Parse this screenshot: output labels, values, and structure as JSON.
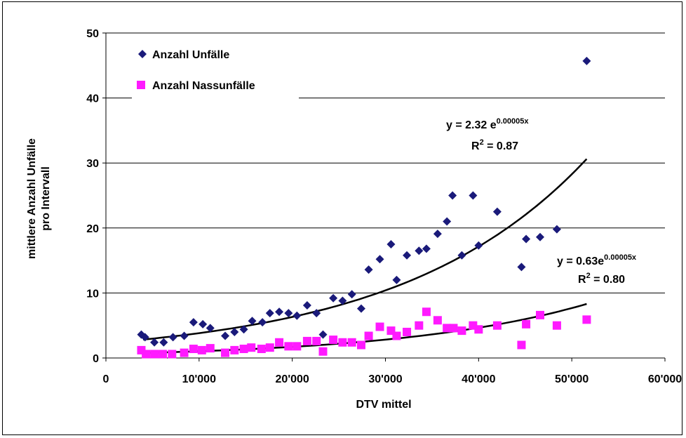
{
  "chart_data": {
    "type": "scatter",
    "title": "",
    "xlabel": "DTV mittel",
    "ylabel": "mittlere Anzahl Unfälle pro Intervall",
    "ylabel_lines": [
      "mittlere Anzahl Unfälle",
      "pro Intervall"
    ],
    "xlim": [
      0,
      60000
    ],
    "ylim": [
      0,
      50
    ],
    "x_ticks": [
      0,
      10000,
      20000,
      30000,
      40000,
      50000,
      60000
    ],
    "x_tick_labels": [
      "0",
      "10'000",
      "20'000",
      "30'000",
      "40'000",
      "50'000",
      "60'000"
    ],
    "y_ticks": [
      0,
      10,
      20,
      30,
      40,
      50
    ],
    "y_tick_labels": [
      "0",
      "10",
      "20",
      "30",
      "40",
      "50"
    ],
    "grid": "horizontal",
    "legend_position": "top-left",
    "series": [
      {
        "name": "Anzahl Unfälle",
        "marker": "diamond",
        "color": "#1a1a7a",
        "points": [
          [
            3800,
            3.6
          ],
          [
            4200,
            3.2
          ],
          [
            5200,
            2.4
          ],
          [
            6200,
            2.4
          ],
          [
            7200,
            3.2
          ],
          [
            8400,
            3.4
          ],
          [
            9400,
            5.5
          ],
          [
            10400,
            5.2
          ],
          [
            11200,
            4.6
          ],
          [
            12800,
            3.4
          ],
          [
            13800,
            4.0
          ],
          [
            14800,
            4.4
          ],
          [
            15700,
            5.7
          ],
          [
            16800,
            5.5
          ],
          [
            17600,
            6.9
          ],
          [
            18600,
            7.1
          ],
          [
            19600,
            6.9
          ],
          [
            20500,
            6.5
          ],
          [
            21600,
            8.1
          ],
          [
            22600,
            6.9
          ],
          [
            23300,
            3.6
          ],
          [
            24400,
            9.2
          ],
          [
            25400,
            8.8
          ],
          [
            26400,
            9.8
          ],
          [
            27400,
            7.6
          ],
          [
            28200,
            13.6
          ],
          [
            29400,
            15.2
          ],
          [
            30600,
            17.5
          ],
          [
            31200,
            12.0
          ],
          [
            32300,
            15.8
          ],
          [
            33600,
            16.5
          ],
          [
            34400,
            16.8
          ],
          [
            35600,
            19.1
          ],
          [
            36600,
            21.0
          ],
          [
            37200,
            25.0
          ],
          [
            38200,
            15.8
          ],
          [
            39400,
            25.0
          ],
          [
            40000,
            17.3
          ],
          [
            42000,
            22.5
          ],
          [
            44600,
            14.0
          ],
          [
            45100,
            18.3
          ],
          [
            46600,
            18.6
          ],
          [
            48400,
            19.8
          ],
          [
            51600,
            45.7
          ]
        ],
        "trendline": {
          "a": 2.32,
          "b": 5e-05,
          "x_range": [
            4000,
            51600
          ]
        }
      },
      {
        "name": "Anzahl Nassunfälle",
        "marker": "square",
        "color": "#ff1aff",
        "points": [
          [
            3800,
            1.2
          ],
          [
            4300,
            0.6
          ],
          [
            5200,
            0.6
          ],
          [
            6100,
            0.6
          ],
          [
            7100,
            0.6
          ],
          [
            8400,
            0.8
          ],
          [
            9400,
            1.4
          ],
          [
            10300,
            1.2
          ],
          [
            11200,
            1.5
          ],
          [
            12800,
            0.8
          ],
          [
            13800,
            1.2
          ],
          [
            14800,
            1.4
          ],
          [
            15600,
            1.6
          ],
          [
            16700,
            1.4
          ],
          [
            17600,
            1.6
          ],
          [
            18600,
            2.4
          ],
          [
            19600,
            1.8
          ],
          [
            20500,
            1.8
          ],
          [
            21600,
            2.6
          ],
          [
            22600,
            2.6
          ],
          [
            23300,
            1.0
          ],
          [
            24400,
            2.8
          ],
          [
            25400,
            2.4
          ],
          [
            26400,
            2.4
          ],
          [
            27400,
            2.0
          ],
          [
            28200,
            3.4
          ],
          [
            29400,
            4.8
          ],
          [
            30600,
            4.2
          ],
          [
            31200,
            3.4
          ],
          [
            32300,
            4.0
          ],
          [
            33600,
            5.0
          ],
          [
            34400,
            7.1
          ],
          [
            35600,
            5.8
          ],
          [
            36600,
            4.6
          ],
          [
            37300,
            4.6
          ],
          [
            38200,
            4.2
          ],
          [
            39400,
            5.0
          ],
          [
            40000,
            4.4
          ],
          [
            42000,
            5.0
          ],
          [
            44600,
            2.0
          ],
          [
            45100,
            5.2
          ],
          [
            46600,
            6.6
          ],
          [
            48400,
            5.0
          ],
          [
            51600,
            5.9
          ]
        ],
        "trendline": {
          "a": 0.63,
          "b": 5e-05,
          "x_range": [
            4000,
            51600
          ]
        }
      }
    ],
    "annotations": [
      {
        "id": "eq1",
        "equation_prefix": "y = 2.32 e",
        "equation_exponent": "0.00005x",
        "r2_value": " = 0.87"
      },
      {
        "id": "eq2",
        "equation_prefix": "y = 0.63e",
        "equation_exponent": "0.00005x",
        "r2_value": " = 0.80"
      }
    ]
  }
}
